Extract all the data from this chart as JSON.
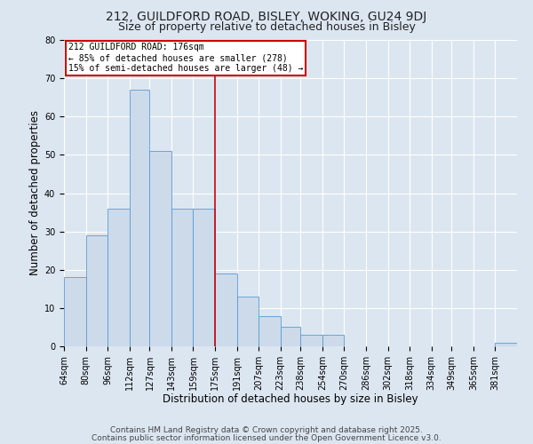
{
  "title_line1": "212, GUILDFORD ROAD, BISLEY, WOKING, GU24 9DJ",
  "title_line2": "Size of property relative to detached houses in Bisley",
  "xlabel": "Distribution of detached houses by size in Bisley",
  "ylabel": "Number of detached properties",
  "bar_left_edges": [
    64,
    80,
    96,
    112,
    127,
    143,
    159,
    175,
    191,
    207,
    223,
    238,
    254,
    270,
    286,
    302,
    318,
    334,
    349,
    365,
    381
  ],
  "bar_heights": [
    18,
    29,
    36,
    67,
    51,
    36,
    36,
    19,
    13,
    8,
    5,
    3,
    3,
    0,
    0,
    0,
    0,
    0,
    0,
    0,
    1
  ],
  "bar_widths": [
    16,
    16,
    16,
    15,
    16,
    16,
    16,
    16,
    16,
    16,
    15,
    16,
    16,
    16,
    16,
    16,
    16,
    15,
    16,
    16,
    16
  ],
  "bin_labels": [
    "64sqm",
    "80sqm",
    "96sqm",
    "112sqm",
    "127sqm",
    "143sqm",
    "159sqm",
    "175sqm",
    "191sqm",
    "207sqm",
    "223sqm",
    "238sqm",
    "254sqm",
    "270sqm",
    "286sqm",
    "302sqm",
    "318sqm",
    "334sqm",
    "349sqm",
    "365sqm",
    "381sqm"
  ],
  "vline_x": 175,
  "annotation_text": "212 GUILDFORD ROAD: 176sqm\n← 85% of detached houses are smaller (278)\n15% of semi-detached houses are larger (48) →",
  "bar_facecolor": "#ccdaea",
  "bar_edgecolor": "#5b9bd5",
  "vline_color": "#cc0000",
  "annot_box_edgecolor": "#cc0000",
  "annot_box_facecolor": "#ffffff",
  "background_color": "#dce6f1",
  "plot_bg_color": "#dce6f1",
  "grid_color": "#ffffff",
  "ylim": [
    0,
    80
  ],
  "yticks": [
    0,
    10,
    20,
    30,
    40,
    50,
    60,
    70,
    80
  ],
  "footer_line1": "Contains HM Land Registry data © Crown copyright and database right 2025.",
  "footer_line2": "Contains public sector information licensed under the Open Government Licence v3.0.",
  "title_fontsize": 10,
  "subtitle_fontsize": 9,
  "annot_fontsize": 7,
  "xlabel_fontsize": 8.5,
  "ylabel_fontsize": 8.5,
  "tick_fontsize": 7,
  "footer_fontsize": 6.5
}
